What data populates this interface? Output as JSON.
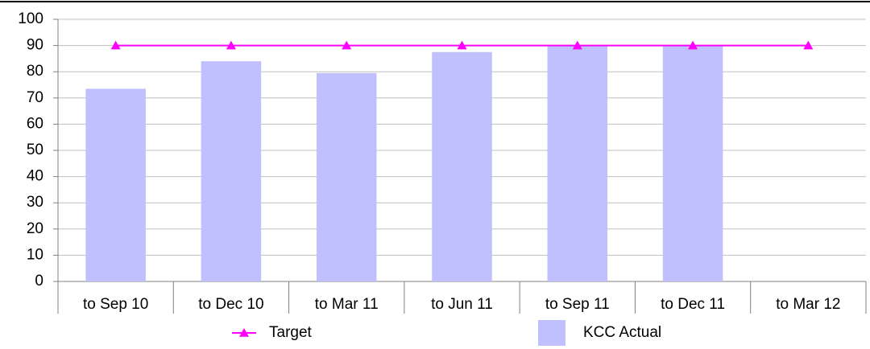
{
  "chart_data": {
    "type": "combo",
    "categories": [
      "to Sep 10",
      "to Dec 10",
      "to Mar 11",
      "to Jun 11",
      "to Sep 11",
      "to Dec 11",
      "to Mar 12"
    ],
    "series": [
      {
        "name": "Target",
        "type": "line",
        "color": "#ff00ff",
        "values": [
          90,
          90,
          90,
          90,
          90,
          90,
          90
        ]
      },
      {
        "name": "KCC Actual",
        "type": "bar",
        "color": "#c0c0ff",
        "values": [
          73.5,
          84,
          79.5,
          87.5,
          90,
          90,
          null
        ]
      }
    ],
    "ylim": [
      0,
      100
    ],
    "yticks": [
      0,
      10,
      20,
      30,
      40,
      50,
      60,
      70,
      80,
      90,
      100
    ],
    "grid": true,
    "legend": "bottom"
  }
}
